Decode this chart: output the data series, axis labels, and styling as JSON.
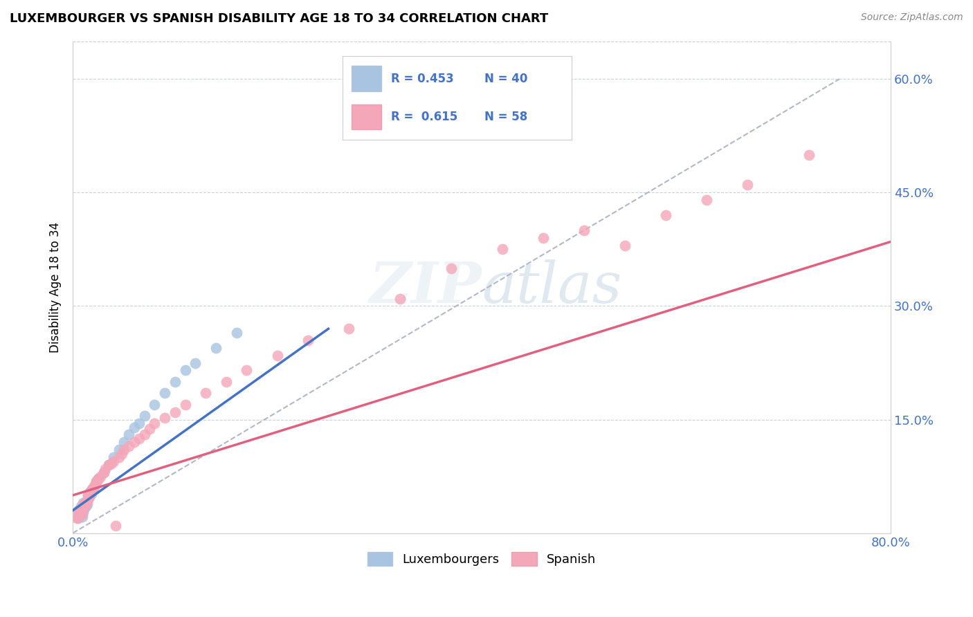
{
  "title": "LUXEMBOURGER VS SPANISH DISABILITY AGE 18 TO 34 CORRELATION CHART",
  "source_text": "Source: ZipAtlas.com",
  "ylabel": "Disability Age 18 to 34",
  "watermark": "ZIPatlas",
  "xlim": [
    0.0,
    0.8
  ],
  "ylim": [
    0.0,
    0.65
  ],
  "xticks": [
    0.0,
    0.1,
    0.2,
    0.3,
    0.4,
    0.5,
    0.6,
    0.7,
    0.8
  ],
  "xticklabels": [
    "0.0%",
    "",
    "",
    "",
    "",
    "",
    "",
    "",
    "80.0%"
  ],
  "yticks": [
    0.0,
    0.15,
    0.3,
    0.45,
    0.6
  ],
  "right_yticklabels": [
    "15.0%",
    "30.0%",
    "45.0%",
    "60.0%"
  ],
  "lux_R": 0.453,
  "lux_N": 40,
  "spa_R": 0.615,
  "spa_N": 58,
  "lux_color": "#a8c4e0",
  "spa_color": "#f4a7b9",
  "lux_line_color": "#4472c4",
  "spa_line_color": "#e06080",
  "trend_line_color": "#b0b8c8",
  "lux_scatter_x": [
    0.005,
    0.005,
    0.007,
    0.008,
    0.009,
    0.01,
    0.01,
    0.011,
    0.012,
    0.013,
    0.013,
    0.014,
    0.015,
    0.015,
    0.016,
    0.017,
    0.018,
    0.019,
    0.02,
    0.021,
    0.022,
    0.023,
    0.024,
    0.025,
    0.03,
    0.035,
    0.04,
    0.045,
    0.05,
    0.055,
    0.06,
    0.065,
    0.07,
    0.08,
    0.09,
    0.1,
    0.11,
    0.12,
    0.14,
    0.16
  ],
  "lux_scatter_y": [
    0.02,
    0.03,
    0.025,
    0.035,
    0.022,
    0.028,
    0.04,
    0.032,
    0.038,
    0.035,
    0.042,
    0.038,
    0.045,
    0.05,
    0.048,
    0.055,
    0.052,
    0.058,
    0.06,
    0.062,
    0.065,
    0.068,
    0.07,
    0.072,
    0.08,
    0.09,
    0.1,
    0.11,
    0.12,
    0.13,
    0.14,
    0.145,
    0.155,
    0.17,
    0.185,
    0.2,
    0.215,
    0.225,
    0.245,
    0.265
  ],
  "spa_scatter_x": [
    0.004,
    0.005,
    0.006,
    0.007,
    0.008,
    0.009,
    0.01,
    0.01,
    0.011,
    0.012,
    0.013,
    0.014,
    0.015,
    0.015,
    0.016,
    0.017,
    0.018,
    0.019,
    0.02,
    0.021,
    0.022,
    0.023,
    0.025,
    0.027,
    0.03,
    0.032,
    0.035,
    0.038,
    0.04,
    0.042,
    0.045,
    0.048,
    0.05,
    0.055,
    0.06,
    0.065,
    0.07,
    0.075,
    0.08,
    0.09,
    0.1,
    0.11,
    0.13,
    0.15,
    0.17,
    0.2,
    0.23,
    0.27,
    0.32,
    0.37,
    0.42,
    0.46,
    0.5,
    0.54,
    0.58,
    0.62,
    0.66,
    0.72
  ],
  "spa_scatter_y": [
    0.02,
    0.025,
    0.022,
    0.028,
    0.03,
    0.025,
    0.032,
    0.038,
    0.035,
    0.04,
    0.038,
    0.042,
    0.045,
    0.05,
    0.048,
    0.052,
    0.055,
    0.058,
    0.06,
    0.062,
    0.065,
    0.068,
    0.072,
    0.075,
    0.08,
    0.085,
    0.09,
    0.092,
    0.095,
    0.01,
    0.1,
    0.105,
    0.11,
    0.115,
    0.12,
    0.125,
    0.13,
    0.138,
    0.145,
    0.152,
    0.16,
    0.17,
    0.185,
    0.2,
    0.215,
    0.235,
    0.255,
    0.27,
    0.31,
    0.35,
    0.375,
    0.39,
    0.4,
    0.38,
    0.42,
    0.44,
    0.46,
    0.5
  ],
  "lux_trend": [
    0.0,
    0.25,
    0.03,
    0.27
  ],
  "spa_trend_x": [
    0.0,
    0.8
  ],
  "spa_trend_y": [
    0.05,
    0.385
  ],
  "dashed_trend_x": [
    0.0,
    0.75
  ],
  "dashed_trend_y": [
    0.0,
    0.6
  ]
}
